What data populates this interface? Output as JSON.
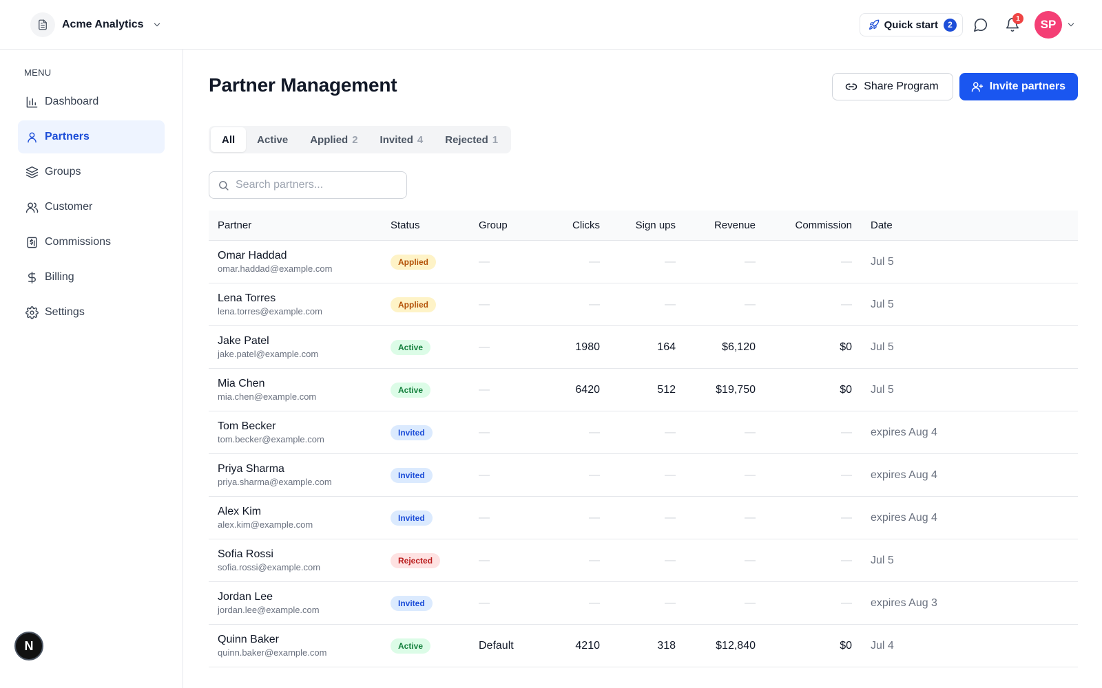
{
  "org": {
    "name": "Acme Analytics"
  },
  "topbar": {
    "quick_start_label": "Quick start",
    "quick_start_count": "2",
    "notifications_count": "1",
    "avatar_initials": "SP"
  },
  "sidebar": {
    "heading": "MENU",
    "items": [
      {
        "label": "Dashboard",
        "icon": "bar-chart-icon"
      },
      {
        "label": "Partners",
        "icon": "user-icon",
        "active": true
      },
      {
        "label": "Groups",
        "icon": "layers-icon"
      },
      {
        "label": "Customer",
        "icon": "users-icon"
      },
      {
        "label": "Commissions",
        "icon": "receipt-icon"
      },
      {
        "label": "Billing",
        "icon": "dollar-icon"
      },
      {
        "label": "Settings",
        "icon": "gear-icon"
      }
    ],
    "bottom_button": "N"
  },
  "page": {
    "title": "Partner Management",
    "share_label": "Share Program",
    "invite_label": "Invite partners"
  },
  "tabs": [
    {
      "label": "All",
      "count": ""
    },
    {
      "label": "Active",
      "count": ""
    },
    {
      "label": "Applied",
      "count": "2"
    },
    {
      "label": "Invited",
      "count": "4"
    },
    {
      "label": "Rejected",
      "count": "1"
    }
  ],
  "search": {
    "placeholder": "Search partners..."
  },
  "table": {
    "headers": {
      "partner": "Partner",
      "status": "Status",
      "group": "Group",
      "clicks": "Clicks",
      "signups": "Sign ups",
      "revenue": "Revenue",
      "commission": "Commission",
      "date": "Date"
    },
    "rows": [
      {
        "name": "Omar Haddad",
        "email": "omar.haddad@example.com",
        "status": "Applied",
        "group": "—",
        "clicks": "—",
        "signups": "—",
        "revenue": "—",
        "commission": "—",
        "date": "Jul 5"
      },
      {
        "name": "Lena Torres",
        "email": "lena.torres@example.com",
        "status": "Applied",
        "group": "—",
        "clicks": "—",
        "signups": "—",
        "revenue": "—",
        "commission": "—",
        "date": "Jul 5"
      },
      {
        "name": "Jake Patel",
        "email": "jake.patel@example.com",
        "status": "Active",
        "group": "—",
        "clicks": "1980",
        "signups": "164",
        "revenue": "$6,120",
        "commission": "$0",
        "date": "Jul 5"
      },
      {
        "name": "Mia Chen",
        "email": "mia.chen@example.com",
        "status": "Active",
        "group": "—",
        "clicks": "6420",
        "signups": "512",
        "revenue": "$19,750",
        "commission": "$0",
        "date": "Jul 5"
      },
      {
        "name": "Tom Becker",
        "email": "tom.becker@example.com",
        "status": "Invited",
        "group": "—",
        "clicks": "—",
        "signups": "—",
        "revenue": "—",
        "commission": "—",
        "date": "expires Aug 4"
      },
      {
        "name": "Priya Sharma",
        "email": "priya.sharma@example.com",
        "status": "Invited",
        "group": "—",
        "clicks": "—",
        "signups": "—",
        "revenue": "—",
        "commission": "—",
        "date": "expires Aug 4"
      },
      {
        "name": "Alex Kim",
        "email": "alex.kim@example.com",
        "status": "Invited",
        "group": "—",
        "clicks": "—",
        "signups": "—",
        "revenue": "—",
        "commission": "—",
        "date": "expires Aug 4"
      },
      {
        "name": "Sofia Rossi",
        "email": "sofia.rossi@example.com",
        "status": "Rejected",
        "group": "—",
        "clicks": "—",
        "signups": "—",
        "revenue": "—",
        "commission": "—",
        "date": "Jul 5"
      },
      {
        "name": "Jordan Lee",
        "email": "jordan.lee@example.com",
        "status": "Invited",
        "group": "—",
        "clicks": "—",
        "signups": "—",
        "revenue": "—",
        "commission": "—",
        "date": "expires Aug 3"
      },
      {
        "name": "Quinn Baker",
        "email": "quinn.baker@example.com",
        "status": "Active",
        "group": "Default",
        "clicks": "4210",
        "signups": "318",
        "revenue": "$12,840",
        "commission": "$0",
        "date": "Jul 4"
      }
    ]
  },
  "colors": {
    "accent": "#1a56f0",
    "active_nav_bg": "#eef4ff",
    "avatar": "#f43f75",
    "notification": "#ef4444"
  }
}
